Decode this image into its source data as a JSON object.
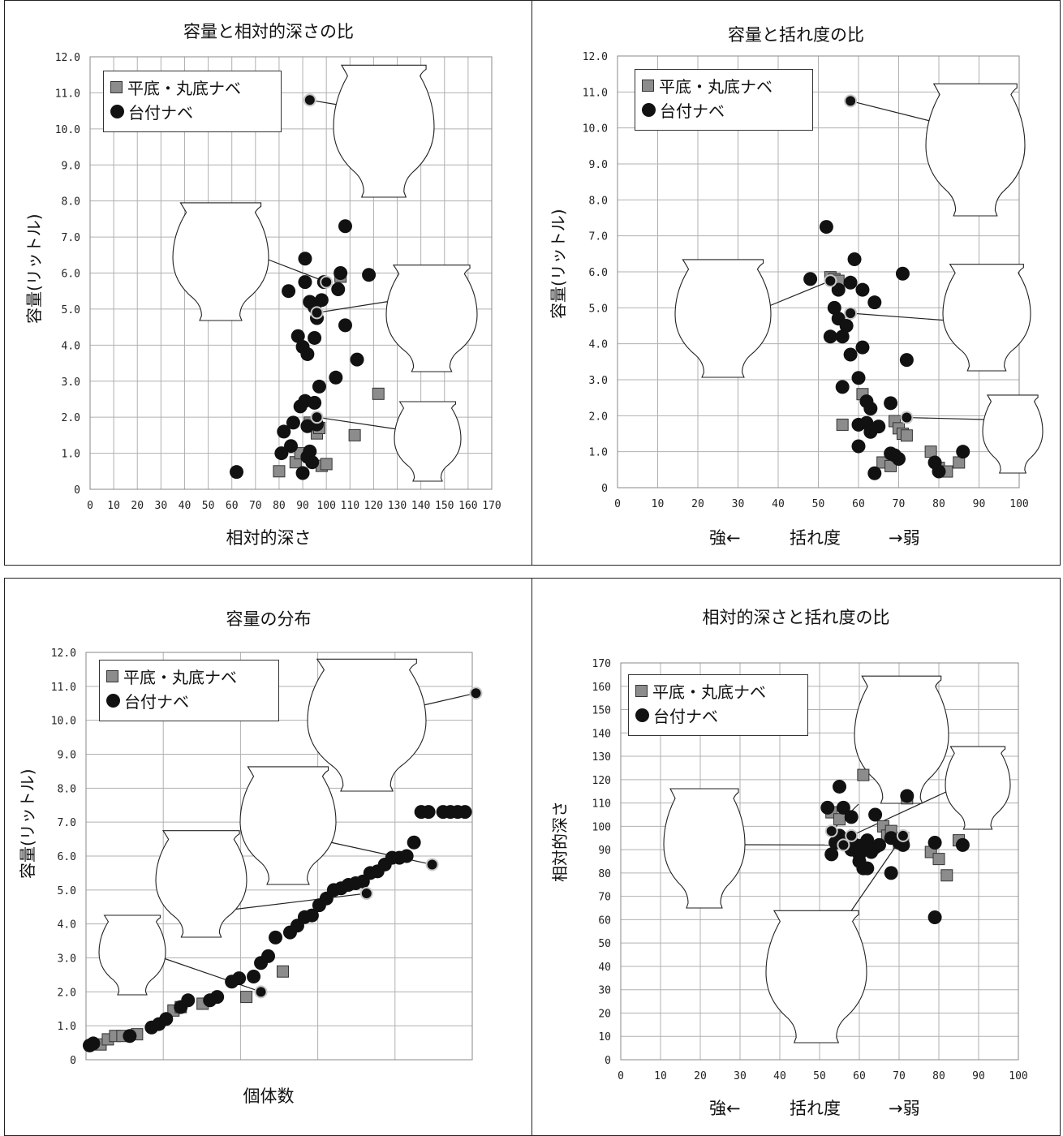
{
  "chart_data": [
    {
      "type": "scatter",
      "title": "容量と相対的深さの比",
      "xlabel": "相対的深さ",
      "ylabel": "容量(リットル)",
      "xlim": [
        0,
        170
      ],
      "ylim": [
        0,
        12
      ],
      "xticks": [
        "0",
        "10",
        "20",
        "30",
        "40",
        "50",
        "60",
        "70",
        "80",
        "90",
        "100",
        "110",
        "120",
        "130",
        "140",
        "150",
        "160",
        "170"
      ],
      "yticks": [
        "0",
        "1.0",
        "2.0",
        "3.0",
        "4.0",
        "5.0",
        "6.0",
        "7.0",
        "8.0",
        "9.0",
        "10.0",
        "11.0",
        "12.0"
      ],
      "grid": true,
      "legend_position": "top-left",
      "series": [
        {
          "name": "平底・丸底ナベ",
          "marker": "square",
          "color": "#8c8c8c",
          "x": [
            80,
            87,
            89,
            93,
            96,
            97,
            98,
            100,
            106,
            112,
            122
          ],
          "y": [
            0.5,
            0.75,
            1.0,
            1.85,
            1.55,
            1.7,
            0.65,
            0.7,
            5.9,
            1.5,
            2.65
          ]
        },
        {
          "name": "台付ナベ",
          "marker": "circle",
          "color": "#111111",
          "x": [
            62,
            81,
            82,
            84,
            85,
            86,
            88,
            89,
            90,
            90,
            91,
            91,
            91,
            92,
            92,
            92,
            93,
            93,
            94,
            95,
            95,
            95,
            96,
            96,
            97,
            98,
            99,
            104,
            105,
            106,
            108,
            108,
            113,
            118
          ],
          "y": [
            0.48,
            1.0,
            1.6,
            5.5,
            1.2,
            1.85,
            4.25,
            2.3,
            3.95,
            0.45,
            2.45,
            5.75,
            6.4,
            1.75,
            0.9,
            3.75,
            1.05,
            5.2,
            0.75,
            5.05,
            2.4,
            4.2,
            4.75,
            1.8,
            2.85,
            5.25,
            5.75,
            3.1,
            5.55,
            6.0,
            7.3,
            4.55,
            3.6,
            5.95
          ]
        }
      ],
      "highlighted_points": [
        {
          "x": 93,
          "y": 10.8
        },
        {
          "x": 100,
          "y": 5.75
        },
        {
          "x": 96,
          "y": 4.9
        },
        {
          "x": 96,
          "y": 2.0
        }
      ]
    },
    {
      "type": "scatter",
      "title": "容量と括れ度の比",
      "xlabel_left": "強←",
      "xlabel": "括れ度",
      "xlabel_right": "→弱",
      "ylabel": "容量(リットル)",
      "xlim": [
        0,
        100
      ],
      "ylim": [
        0,
        12
      ],
      "xticks": [
        "0",
        "10",
        "20",
        "30",
        "40",
        "50",
        "60",
        "70",
        "80",
        "90",
        "100"
      ],
      "yticks": [
        "0",
        "1.0",
        "2.0",
        "3.0",
        "4.0",
        "5.0",
        "6.0",
        "7.0",
        "8.0",
        "9.0",
        "10.0",
        "11.0",
        "12.0"
      ],
      "grid": true,
      "legend_position": "top-left",
      "series": [
        {
          "name": "平底・丸底ナベ",
          "marker": "square",
          "color": "#8c8c8c",
          "x": [
            53,
            54,
            55,
            56,
            61,
            66,
            68,
            69,
            70,
            71,
            72,
            78,
            80,
            82,
            85
          ],
          "y": [
            5.85,
            5.8,
            5.75,
            1.75,
            2.6,
            0.7,
            0.6,
            1.85,
            1.65,
            1.5,
            1.45,
            1.0,
            0.55,
            0.45,
            0.7
          ]
        },
        {
          "name": "台付ナベ",
          "marker": "circle",
          "color": "#111111",
          "x": [
            48,
            52,
            53,
            54,
            55,
            55,
            56,
            56,
            57,
            58,
            58,
            59,
            60,
            60,
            60,
            61,
            61,
            62,
            62,
            63,
            63,
            64,
            64,
            65,
            68,
            68,
            69,
            70,
            71,
            72,
            79,
            80,
            86
          ],
          "y": [
            5.8,
            7.25,
            4.2,
            5.0,
            5.5,
            4.7,
            4.2,
            2.8,
            4.5,
            3.7,
            5.7,
            6.35,
            3.05,
            1.15,
            1.75,
            5.5,
            3.9,
            2.4,
            1.8,
            2.2,
            1.55,
            5.15,
            0.4,
            1.7,
            2.35,
            0.95,
            0.9,
            0.8,
            5.95,
            3.55,
            0.7,
            0.45,
            1.0
          ]
        }
      ],
      "highlighted_points": [
        {
          "x": 58,
          "y": 10.75
        },
        {
          "x": 53,
          "y": 5.75
        },
        {
          "x": 58,
          "y": 4.85
        },
        {
          "x": 72,
          "y": 1.95
        }
      ]
    },
    {
      "type": "scatter",
      "title": "容量の分布",
      "xlabel": "個体数",
      "ylabel": "容量(リットル)",
      "xlim": [
        0,
        53
      ],
      "ylim": [
        0,
        12
      ],
      "yticks": [
        "0",
        "1.0",
        "2.0",
        "3.0",
        "4.0",
        "5.0",
        "6.0",
        "7.0",
        "8.0",
        "9.0",
        "10.0",
        "11.0",
        "12.0"
      ],
      "grid": true,
      "legend_position": "top-left",
      "series": [
        {
          "name": "平底・丸底ナベ",
          "marker": "square",
          "color": "#8c8c8c",
          "x": [
            2,
            3,
            4,
            5,
            7,
            12,
            13,
            16,
            22,
            27
          ],
          "y": [
            0.45,
            0.6,
            0.7,
            0.7,
            0.75,
            1.45,
            1.55,
            1.65,
            1.85,
            2.6
          ]
        },
        {
          "name": "台付ナベ",
          "marker": "circle",
          "color": "#111111",
          "x": [
            0.5,
            1,
            6,
            9,
            10,
            11,
            13,
            14,
            17,
            18,
            20,
            21,
            23,
            24,
            25,
            26,
            28,
            29,
            30,
            31,
            32,
            33,
            34,
            35,
            36,
            37,
            38,
            39,
            40,
            41,
            42,
            43,
            44,
            45,
            46,
            47,
            49,
            50,
            51,
            52
          ],
          "y": [
            0.42,
            0.48,
            0.7,
            0.95,
            1.05,
            1.2,
            1.55,
            1.75,
            1.75,
            1.85,
            2.3,
            2.4,
            2.45,
            2.85,
            3.05,
            3.6,
            3.75,
            3.95,
            4.2,
            4.25,
            4.55,
            4.75,
            5.0,
            5.05,
            5.15,
            5.2,
            5.25,
            5.5,
            5.55,
            5.75,
            5.95,
            5.95,
            6.0,
            6.4,
            7.3,
            7.3,
            7.3,
            7.3,
            7.3,
            7.3
          ]
        }
      ],
      "highlighted_points": [
        {
          "x": 53.5,
          "y": 10.8
        },
        {
          "x": 47.5,
          "y": 5.75
        },
        {
          "x": 38.5,
          "y": 4.9
        },
        {
          "x": 24,
          "y": 2.0
        }
      ]
    },
    {
      "type": "scatter",
      "title": "相対的深さと括れ度の比",
      "xlabel_left": "強←",
      "xlabel": "括れ度",
      "xlabel_right": "→弱",
      "ylabel": "相対的深さ",
      "xlim": [
        0,
        100
      ],
      "ylim": [
        0,
        170
      ],
      "xticks": [
        "0",
        "10",
        "20",
        "30",
        "40",
        "50",
        "60",
        "70",
        "80",
        "90",
        "100"
      ],
      "yticks": [
        "0",
        "10",
        "20",
        "30",
        "40",
        "50",
        "60",
        "70",
        "80",
        "90",
        "100",
        "110",
        "120",
        "130",
        "140",
        "150",
        "160",
        "170"
      ],
      "grid": true,
      "legend_position": "top-left",
      "series": [
        {
          "name": "平底・丸底ナベ",
          "marker": "square",
          "color": "#8c8c8c",
          "x": [
            53,
            55,
            61,
            66,
            67,
            68,
            70,
            71,
            72,
            78,
            80,
            82,
            85
          ],
          "y": [
            106,
            103,
            122,
            100,
            96,
            98,
            93,
            95,
            112,
            89,
            86,
            79,
            94
          ]
        },
        {
          "name": "台付ナベ",
          "marker": "circle",
          "color": "#111111",
          "x": [
            52,
            53,
            54,
            55,
            55,
            56,
            57,
            58,
            58,
            59,
            60,
            60,
            61,
            61,
            62,
            62,
            63,
            64,
            64,
            65,
            68,
            68,
            70,
            71,
            72,
            79,
            79,
            86
          ],
          "y": [
            108,
            88,
            93,
            117,
            96,
            108,
            94,
            90,
            104,
            92,
            85,
            88,
            82,
            92,
            94,
            82,
            89,
            105,
            91,
            92,
            80,
            95,
            93,
            92,
            113,
            93,
            61,
            92
          ]
        }
      ],
      "highlighted_points": [
        {
          "x": 53,
          "y": 98
        },
        {
          "x": 56,
          "y": 92
        },
        {
          "x": 58,
          "y": 96
        },
        {
          "x": 71,
          "y": 96
        }
      ]
    }
  ]
}
